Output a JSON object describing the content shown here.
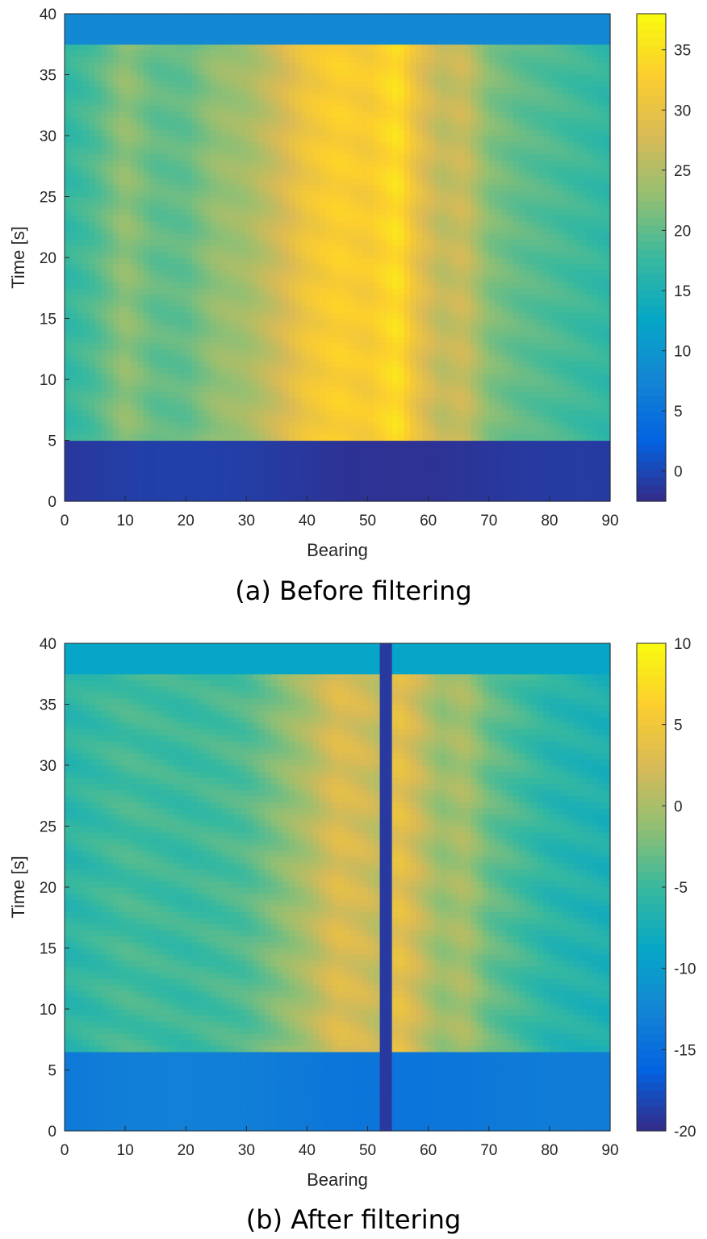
{
  "chart_data": [
    {
      "type": "heatmap",
      "caption": "(a) Before filtering",
      "xlabel": "Bearing",
      "ylabel": "Time [s]",
      "xlim": [
        0,
        90
      ],
      "ylim": [
        0,
        40
      ],
      "xticks": [
        "0",
        "10",
        "20",
        "30",
        "40",
        "50",
        "60",
        "70",
        "80",
        "90"
      ],
      "yticks": [
        "0",
        "5",
        "10",
        "15",
        "20",
        "25",
        "30",
        "35",
        "40"
      ],
      "colorbar": {
        "min": -2.5,
        "max": 38,
        "ticks": [
          "0",
          "5",
          "10",
          "15",
          "20",
          "25",
          "30",
          "35"
        ]
      },
      "active_time_range": [
        5,
        37.5
      ],
      "background_levels": {
        "early": -1,
        "late": 8
      },
      "bearing_profile": [
        {
          "bearing": 0,
          "level": 17
        },
        {
          "bearing": 5,
          "level": 19
        },
        {
          "bearing": 10,
          "level": 23
        },
        {
          "bearing": 15,
          "level": 20
        },
        {
          "bearing": 20,
          "level": 20
        },
        {
          "bearing": 25,
          "level": 23
        },
        {
          "bearing": 30,
          "level": 24
        },
        {
          "bearing": 35,
          "level": 27
        },
        {
          "bearing": 40,
          "level": 31
        },
        {
          "bearing": 45,
          "level": 33
        },
        {
          "bearing": 50,
          "level": 32
        },
        {
          "bearing": 55,
          "level": 35
        },
        {
          "bearing": 58,
          "level": 30
        },
        {
          "bearing": 62,
          "level": 26
        },
        {
          "bearing": 66,
          "level": 27
        },
        {
          "bearing": 70,
          "level": 22
        },
        {
          "bearing": 75,
          "level": 20
        },
        {
          "bearing": 80,
          "level": 19
        },
        {
          "bearing": 90,
          "level": 17
        }
      ],
      "notch": null
    },
    {
      "type": "heatmap",
      "caption": "(b) After filtering",
      "xlabel": "Bearing",
      "ylabel": "Time [s]",
      "xlim": [
        0,
        90
      ],
      "ylim": [
        0,
        40
      ],
      "xticks": [
        "0",
        "10",
        "20",
        "30",
        "40",
        "50",
        "60",
        "70",
        "80",
        "90"
      ],
      "yticks": [
        "0",
        "5",
        "10",
        "15",
        "20",
        "25",
        "30",
        "35",
        "40"
      ],
      "colorbar": {
        "min": -20,
        "max": 10,
        "ticks": [
          "-20",
          "-15",
          "-10",
          "-5",
          "0",
          "5",
          "10"
        ]
      },
      "active_time_range": [
        6.5,
        37.5
      ],
      "background_levels": {
        "early": -13.5,
        "late": -9
      },
      "bearing_profile": [
        {
          "bearing": 0,
          "level": -6
        },
        {
          "bearing": 10,
          "level": -4.5
        },
        {
          "bearing": 20,
          "level": -5
        },
        {
          "bearing": 30,
          "level": -4
        },
        {
          "bearing": 35,
          "level": -2
        },
        {
          "bearing": 40,
          "level": 0
        },
        {
          "bearing": 45,
          "level": 3
        },
        {
          "bearing": 50,
          "level": 2
        },
        {
          "bearing": 52,
          "level": 1
        },
        {
          "bearing": 55,
          "level": 4
        },
        {
          "bearing": 58,
          "level": 2
        },
        {
          "bearing": 62,
          "level": -1
        },
        {
          "bearing": 66,
          "level": 0
        },
        {
          "bearing": 70,
          "level": -3
        },
        {
          "bearing": 80,
          "level": -6
        },
        {
          "bearing": 90,
          "level": -7
        }
      ],
      "notch": {
        "bearing": 53,
        "level": -19
      }
    }
  ]
}
